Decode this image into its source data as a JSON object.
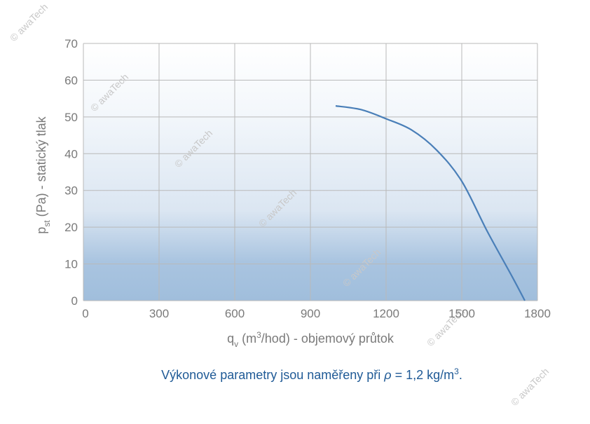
{
  "chart_data": {
    "type": "line",
    "x": [
      1000,
      1100,
      1200,
      1300,
      1400,
      1500,
      1600,
      1700,
      1750
    ],
    "series": [
      {
        "color": "#4a7fb8",
        "values": [
          53,
          52,
          49.5,
          46.5,
          41,
          32.5,
          19,
          6.5,
          0
        ]
      }
    ],
    "xlim": [
      0,
      1800
    ],
    "xticks": [
      0,
      300,
      600,
      900,
      1200,
      1500,
      1800
    ],
    "ylim": [
      0,
      70
    ],
    "yticks": [
      0,
      10,
      20,
      30,
      40,
      50,
      60,
      70
    ],
    "grid": true,
    "xlabel": {
      "main": "q",
      "sub": "v",
      "a": " (m",
      "sup": "3",
      "b": "/hod) - objemový průtok"
    },
    "ylabel": {
      "main": "p",
      "sub": "st",
      "rest": " (Pa) - statický tlak"
    },
    "caption": {
      "a": "Výkonové parametry jsou naměřeny při ",
      "rho": "ρ",
      "b": " = 1,2 kg/m",
      "sup": "3",
      "c": "."
    },
    "watermark": "© awaTech"
  }
}
